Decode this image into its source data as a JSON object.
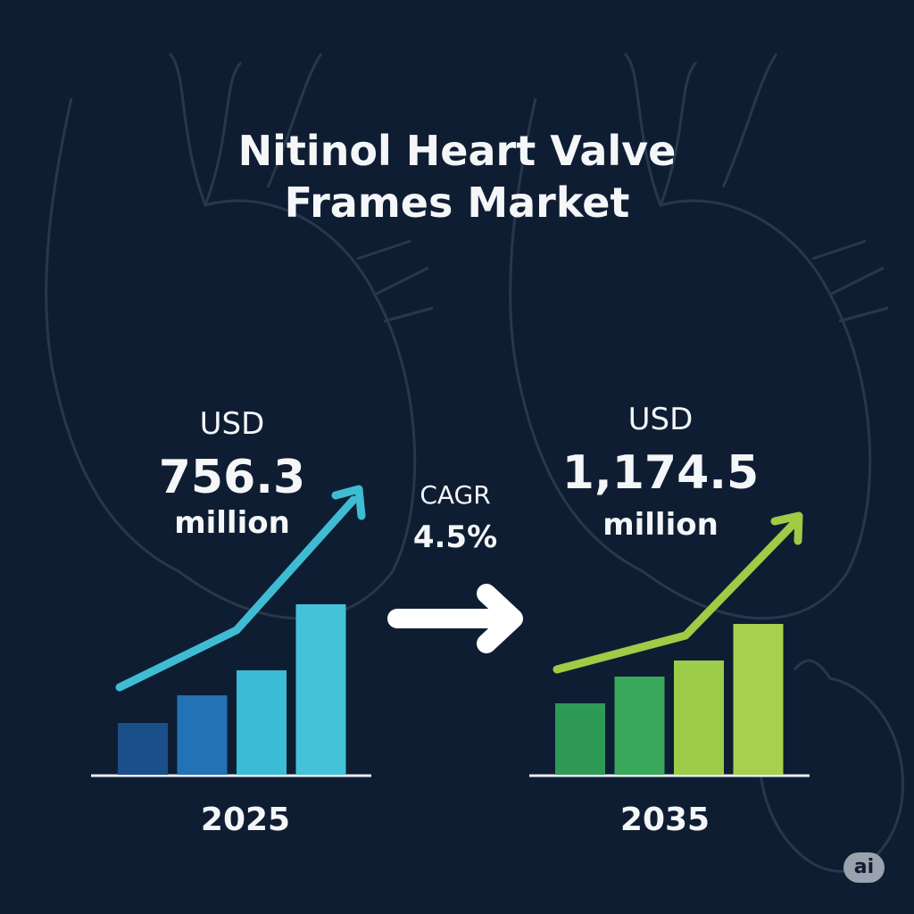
{
  "title_line1": "Nitinol Heart Valve",
  "title_line2": "Frames Market",
  "left": {
    "currency": "USD",
    "value": "756.3",
    "unit": "million",
    "year": "2025"
  },
  "right": {
    "currency": "USD",
    "value": "1,174.5",
    "unit": "million",
    "year": "2035"
  },
  "cagr": {
    "label": "CAGR",
    "value": "4.5%"
  },
  "badge": "ai",
  "colors": {
    "background": "#0f1d33",
    "left_bars": [
      "#1b4f8a",
      "#2272b5",
      "#3bbcd6",
      "#44c3d8"
    ],
    "left_arrow": "#3fbcd3",
    "right_bars": [
      "#2f9a58",
      "#3aa85a",
      "#9ccc4a",
      "#a6d04e"
    ],
    "right_arrow": "#9fcb45"
  },
  "chart_data": [
    {
      "type": "bar",
      "title": "2025",
      "categories": [
        "1",
        "2",
        "3",
        "4"
      ],
      "values": [
        58,
        89,
        117,
        191
      ],
      "trend": "rising",
      "note": "relative illustrative bar heights"
    },
    {
      "type": "bar",
      "title": "2035",
      "categories": [
        "1",
        "2",
        "3",
        "4"
      ],
      "values": [
        80,
        110,
        128,
        169
      ],
      "trend": "rising",
      "note": "relative illustrative bar heights"
    }
  ]
}
